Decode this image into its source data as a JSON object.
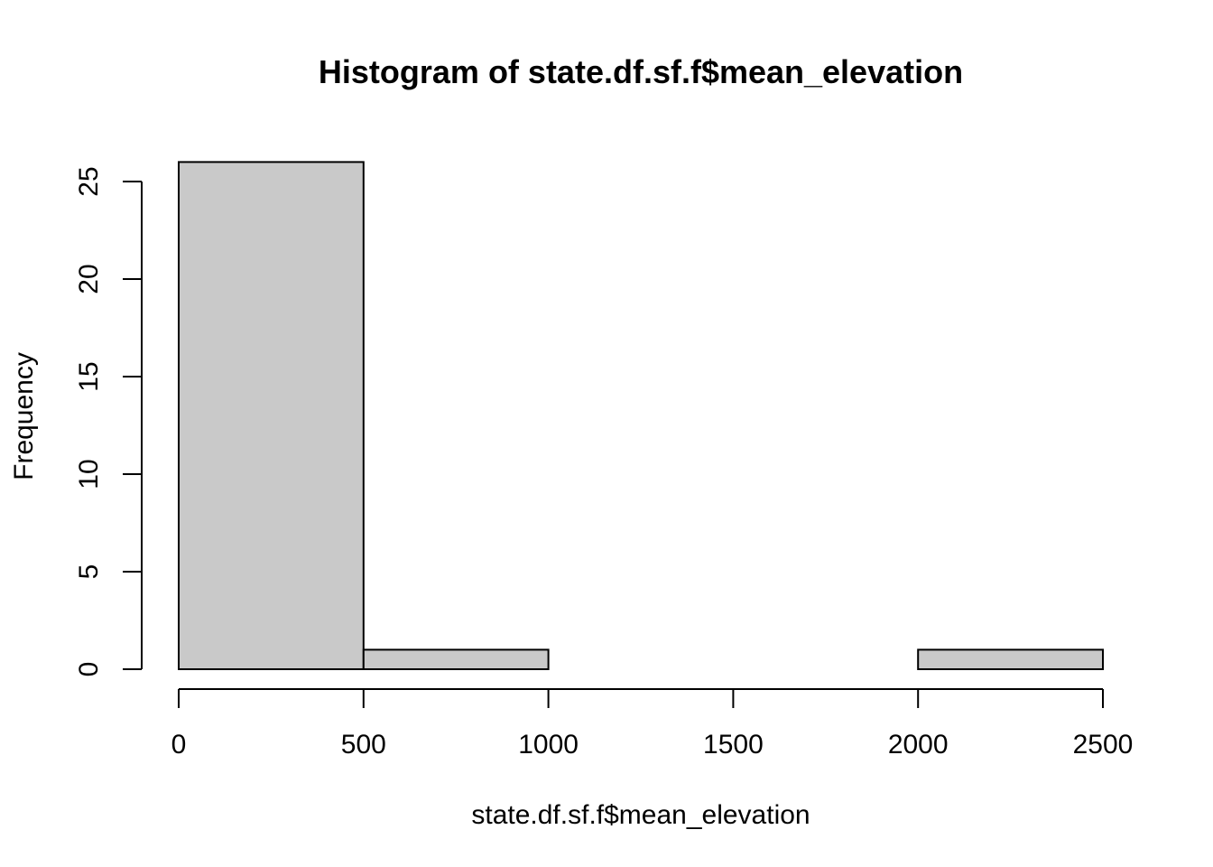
{
  "chart_data": {
    "type": "bar",
    "subtype": "histogram",
    "title": "Histogram of state.df.sf.f$mean_elevation",
    "xlabel": "state.df.sf.f$mean_elevation",
    "ylabel": "Frequency",
    "bins": [
      {
        "start": 0,
        "end": 500,
        "count": 26
      },
      {
        "start": 500,
        "end": 1000,
        "count": 1
      },
      {
        "start": 1000,
        "end": 1500,
        "count": 0
      },
      {
        "start": 1500,
        "end": 2000,
        "count": 0
      },
      {
        "start": 2000,
        "end": 2500,
        "count": 1
      }
    ],
    "xlim": [
      0,
      2500
    ],
    "ylim": [
      0,
      26
    ],
    "xticks": [
      "0",
      "500",
      "1000",
      "1500",
      "2000",
      "2500"
    ],
    "yticks": [
      "0",
      "5",
      "10",
      "15",
      "20",
      "25"
    ],
    "bar_fill": "#c9c9c9",
    "grid": false,
    "legend": "none"
  }
}
